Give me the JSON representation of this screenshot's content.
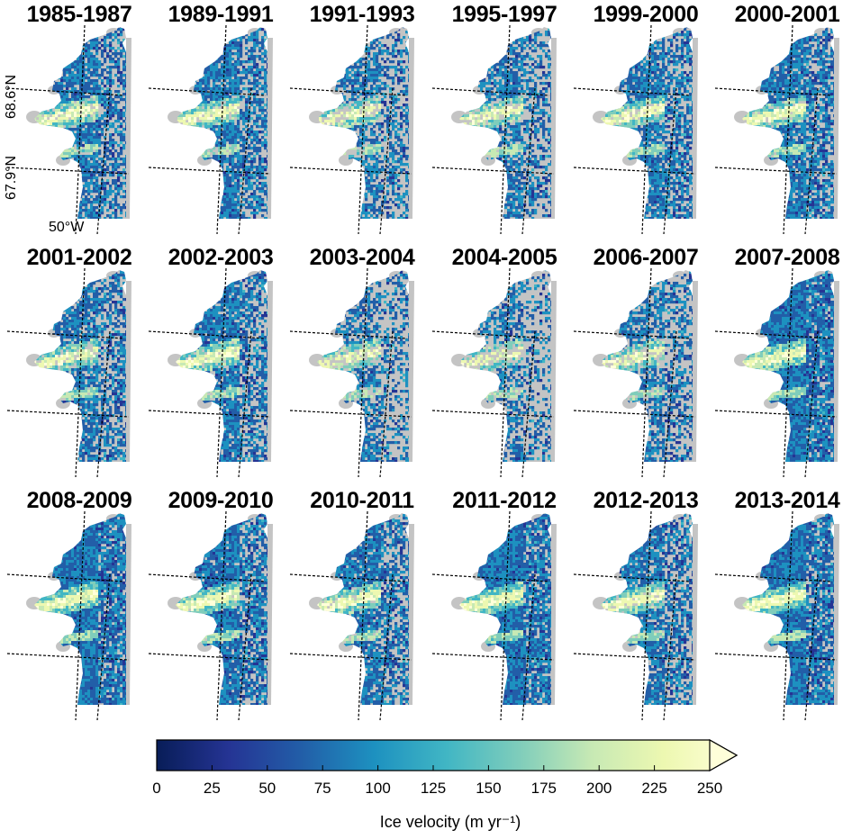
{
  "panels": [
    {
      "title": "1985-1987",
      "coverage": 0.7
    },
    {
      "title": "1989-1991",
      "coverage": 0.72
    },
    {
      "title": "1991-1993",
      "coverage": 0.55
    },
    {
      "title": "1995-1997",
      "coverage": 0.6
    },
    {
      "title": "1999-2000",
      "coverage": 0.7
    },
    {
      "title": "2000-2001",
      "coverage": 0.75
    },
    {
      "title": "2001-2002",
      "coverage": 0.68
    },
    {
      "title": "2002-2003",
      "coverage": 0.72
    },
    {
      "title": "2003-2004",
      "coverage": 0.5
    },
    {
      "title": "2004-2005",
      "coverage": 0.45
    },
    {
      "title": "2006-2007",
      "coverage": 0.55
    },
    {
      "title": "2007-2008",
      "coverage": 0.95
    },
    {
      "title": "2008-2009",
      "coverage": 0.92
    },
    {
      "title": "2009-2010",
      "coverage": 0.8
    },
    {
      "title": "2010-2011",
      "coverage": 0.72
    },
    {
      "title": "2011-2012",
      "coverage": 0.88
    },
    {
      "title": "2012-2013",
      "coverage": 0.7
    },
    {
      "title": "2013-2014",
      "coverage": 0.9
    }
  ],
  "map_labels": {
    "lat_north": "68.6°N",
    "lat_south": "67.9°N",
    "lon": "50°W"
  },
  "colorbar": {
    "label": "Ice velocity (m yr⁻¹)",
    "min": 0,
    "max": 250,
    "ticks": [
      "0",
      "25",
      "50",
      "75",
      "100",
      "125",
      "150",
      "175",
      "200",
      "225",
      "250"
    ],
    "extend": "max",
    "colormap": [
      "#081d58",
      "#253494",
      "#225ea8",
      "#1d91c0",
      "#41b6c4",
      "#7fcdbb",
      "#c7e9b4",
      "#edf8b1",
      "#ffffd9"
    ]
  },
  "colors": {
    "ice_mask": "#c4c4c4",
    "gridline": "#000000"
  }
}
